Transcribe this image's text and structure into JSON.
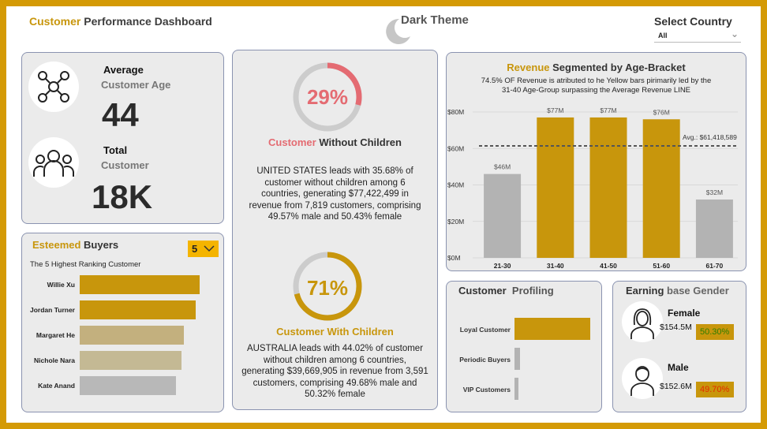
{
  "header": {
    "title_accent": "Customer",
    "title_rest": " Performance Dashboard",
    "theme_label": "Dark Theme",
    "country_label": "Select Country",
    "country_value": "All"
  },
  "kpi": {
    "avg_label_1": "Average",
    "avg_label_2": "Customer Age",
    "avg_value": "44",
    "total_label_1": "Total",
    "total_label_2": "Customer",
    "total_value": "18K"
  },
  "without_children": {
    "percent": "29%",
    "percent_value": 29,
    "title_accent": "Customer",
    "title_rest": " Without Children",
    "text": "UNITED STATES leads with 35.68% of customer without children among 6 countries, generating $77,422,499 in revenue from 7,819 customers, comprising 49.57% male and 50.43% female"
  },
  "with_children": {
    "percent": "71%",
    "percent_value": 71,
    "title": "Customer With Children",
    "text": "AUSTRALIA leads with 44.02% of customer without children among 6 countries, generating $39,669,905 in revenue from 3,591 customers, comprising 49.68% male and 50.32% female"
  },
  "buyers": {
    "title_accent": "Esteemed",
    "title_rest": " Buyers",
    "count": "5",
    "subtitle": "The 5 Highest Ranking Customer",
    "items": [
      {
        "name": "Willie Xu",
        "value": 100,
        "color": "#c8960c"
      },
      {
        "name": "Jordan Turner",
        "value": 97,
        "color": "#c8960c"
      },
      {
        "name": "Margaret He",
        "value": 87,
        "color": "#c3b07e"
      },
      {
        "name": "Nichole Nara",
        "value": 85,
        "color": "#c4b994"
      },
      {
        "name": "Kate Anand",
        "value": 80,
        "color": "#b8b8b8"
      }
    ]
  },
  "revenue": {
    "title_accent": "Revenue",
    "title_rest": " Segmented by Age-Bracket",
    "subtitle_1": "74.5% OF Revenue is atributed to he Yellow bars pirimarily led by the",
    "subtitle_2": "31-40 Age-Group surpassing the Average Revenue LINE",
    "avg_label": "Avg.: $61,418,589"
  },
  "chart_data": {
    "type": "bar",
    "categories": [
      "21-30",
      "31-40",
      "41-50",
      "51-60",
      "61-70"
    ],
    "values": [
      46,
      77,
      77,
      76,
      32
    ],
    "data_labels": [
      "$46M",
      "$77M",
      "$77M",
      "$76M",
      "$32M"
    ],
    "colors": [
      "#b3b3b3",
      "#c8960c",
      "#c8960c",
      "#c8960c",
      "#b3b3b3"
    ],
    "ylim": [
      0,
      80
    ],
    "yticks": [
      0,
      20,
      40,
      60,
      80
    ],
    "ytick_labels": [
      "$0M",
      "$20M",
      "$40M",
      "$60M",
      "$80M"
    ],
    "average": 61.418589,
    "grid": true
  },
  "profiling": {
    "title_1": "Customer",
    "title_2": "Profiling",
    "items": [
      {
        "name": "Loyal Customer",
        "value": 100,
        "color": "#c8960c"
      },
      {
        "name": "Periodic Buyers",
        "value": 7,
        "color": "#b3b3b3"
      },
      {
        "name": "VIP Customers",
        "value": 5,
        "color": "#b3b3b3"
      }
    ]
  },
  "gender": {
    "title_1": "Earning",
    "title_2": " base Gender",
    "female_label": "Female",
    "female_amount": "$154.5M",
    "female_pct": "50.30%",
    "female_pct_color": "#2e7d00",
    "male_label": "Male",
    "male_amount": "$152.6M",
    "male_pct": "49.70%",
    "male_pct_color": "#e32a00"
  }
}
